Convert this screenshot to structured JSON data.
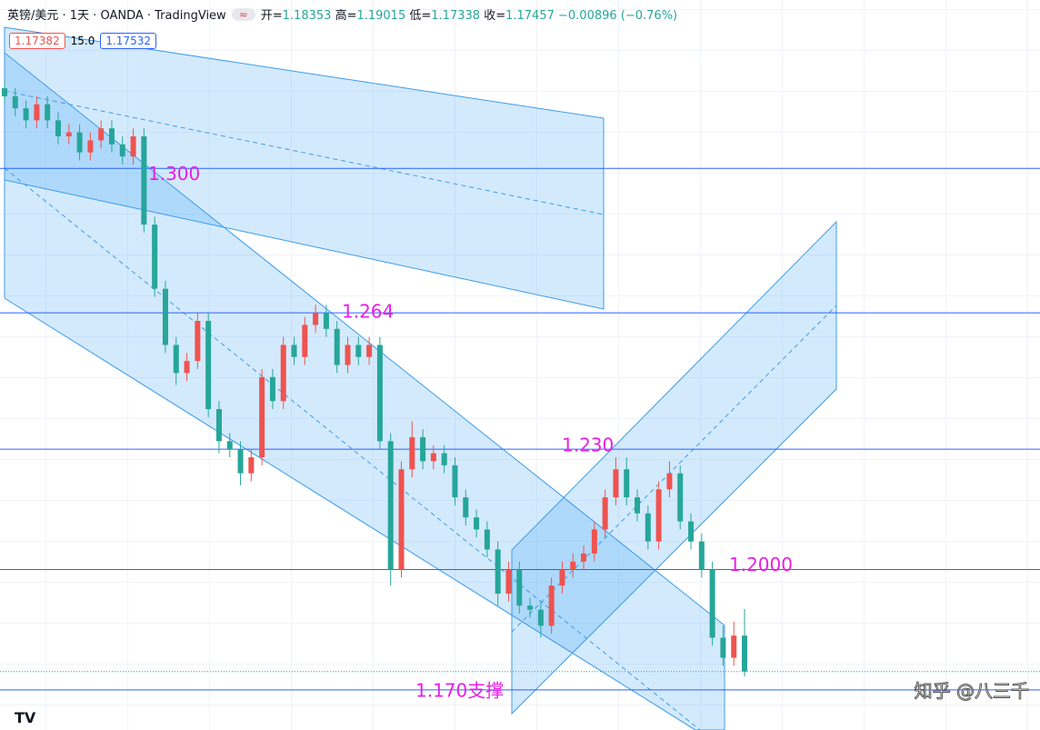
{
  "header": {
    "title": "英镑/美元 · 1天 · OANDA · TradingView",
    "open_label": "开=",
    "high_label": "高=",
    "low_label": "低=",
    "close_label": "收=",
    "change": "−0.00896 (−0.76%)",
    "bid": "1.17382",
    "spread": "15.0",
    "ask": "1.17532"
  },
  "watermark": "知乎 @八三千",
  "chart_data": {
    "type": "candlestick",
    "up_color": "#ef5350",
    "down_color": "#26a69a",
    "level_color": "#2962ff",
    "label_color": "#e91ee6",
    "ylim": [
      1.16,
      1.342
    ],
    "open": [
      1.32,
      1.318,
      1.315,
      1.312,
      1.316,
      1.312,
      1.308,
      1.309,
      1.304,
      1.307,
      1.31,
      1.306,
      1.303,
      1.308,
      1.286,
      1.27,
      1.256,
      1.249,
      1.252,
      1.262,
      1.24,
      1.232,
      1.23,
      1.224,
      1.228,
      1.248,
      1.242,
      1.256,
      1.253,
      1.261,
      1.264,
      1.26,
      1.251,
      1.256,
      1.253,
      1.256,
      1.232,
      1.2,
      1.225,
      1.233,
      1.227,
      1.229,
      1.226,
      1.218,
      1.213,
      1.21,
      1.205,
      1.194,
      1.2,
      1.191,
      1.19,
      1.186,
      1.196,
      1.2,
      1.202,
      1.204,
      1.21,
      1.218,
      1.225,
      1.218,
      1.214,
      1.207,
      1.22,
      1.224,
      1.212,
      1.207,
      1.2,
      1.183,
      1.178,
      1.18353
    ],
    "high": [
      1.322,
      1.32,
      1.317,
      1.318,
      1.318,
      1.314,
      1.311,
      1.311,
      1.309,
      1.312,
      1.312,
      1.308,
      1.31,
      1.31,
      1.288,
      1.272,
      1.258,
      1.254,
      1.264,
      1.264,
      1.242,
      1.234,
      1.232,
      1.23,
      1.25,
      1.25,
      1.258,
      1.258,
      1.263,
      1.266,
      1.266,
      1.262,
      1.258,
      1.258,
      1.258,
      1.258,
      1.234,
      1.227,
      1.237,
      1.235,
      1.231,
      1.231,
      1.228,
      1.22,
      1.215,
      1.212,
      1.207,
      1.202,
      1.202,
      1.193,
      1.192,
      1.198,
      1.202,
      1.204,
      1.206,
      1.212,
      1.22,
      1.228,
      1.228,
      1.22,
      1.216,
      1.222,
      1.227,
      1.226,
      1.214,
      1.209,
      1.202,
      1.186,
      1.187,
      1.19015
    ],
    "low": [
      1.316,
      1.313,
      1.31,
      1.31,
      1.31,
      1.306,
      1.306,
      1.302,
      1.302,
      1.305,
      1.304,
      1.301,
      1.301,
      1.284,
      1.268,
      1.254,
      1.246,
      1.247,
      1.25,
      1.238,
      1.229,
      1.228,
      1.221,
      1.222,
      1.226,
      1.24,
      1.24,
      1.251,
      1.251,
      1.259,
      1.258,
      1.249,
      1.249,
      1.251,
      1.251,
      1.23,
      1.196,
      1.198,
      1.223,
      1.225,
      1.225,
      1.224,
      1.216,
      1.211,
      1.208,
      1.203,
      1.191,
      1.192,
      1.189,
      1.188,
      1.183,
      1.184,
      1.194,
      1.198,
      1.2,
      1.202,
      1.208,
      1.216,
      1.216,
      1.212,
      1.205,
      1.205,
      1.218,
      1.21,
      1.205,
      1.198,
      1.181,
      1.176,
      1.176,
      1.17338
    ],
    "close": [
      1.318,
      1.315,
      1.312,
      1.316,
      1.312,
      1.308,
      1.309,
      1.304,
      1.307,
      1.31,
      1.306,
      1.303,
      1.308,
      1.286,
      1.27,
      1.256,
      1.249,
      1.252,
      1.262,
      1.24,
      1.232,
      1.23,
      1.224,
      1.228,
      1.248,
      1.242,
      1.256,
      1.253,
      1.261,
      1.264,
      1.26,
      1.251,
      1.256,
      1.253,
      1.256,
      1.232,
      1.2,
      1.225,
      1.233,
      1.227,
      1.229,
      1.226,
      1.218,
      1.213,
      1.21,
      1.205,
      1.194,
      1.2,
      1.191,
      1.19,
      1.186,
      1.196,
      1.2,
      1.202,
      1.204,
      1.21,
      1.218,
      1.225,
      1.218,
      1.214,
      1.207,
      1.22,
      1.224,
      1.212,
      1.207,
      1.2,
      1.183,
      1.178,
      1.18353,
      1.17457
    ],
    "levels": [
      {
        "value": 1.3,
        "label": "1.300"
      },
      {
        "value": 1.264,
        "label": "1.264"
      },
      {
        "value": 1.23,
        "label": "1.230"
      },
      {
        "value": 1.2,
        "label": "1.2000"
      },
      {
        "value": 1.17,
        "label": "1.170支撑"
      }
    ]
  }
}
